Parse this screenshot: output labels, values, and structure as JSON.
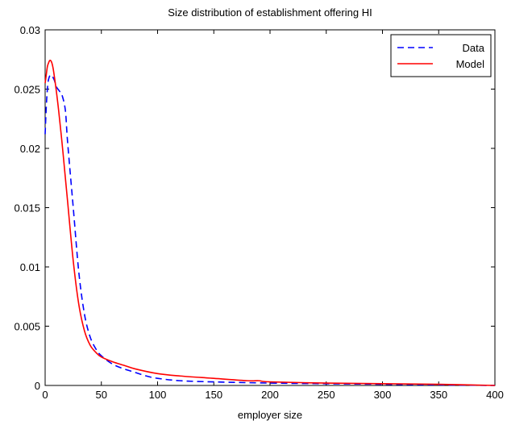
{
  "chart_data": {
    "type": "line",
    "title": "Size distribution of establishment offering HI",
    "xlabel": "employer size",
    "ylabel": "",
    "xlim": [
      0,
      400
    ],
    "ylim": [
      0,
      0.03
    ],
    "xticks": [
      0,
      50,
      100,
      150,
      200,
      250,
      300,
      350,
      400
    ],
    "xtick_labels": [
      "0",
      "50",
      "100",
      "150",
      "200",
      "250",
      "300",
      "350",
      "400"
    ],
    "yticks": [
      0,
      0.005,
      0.01,
      0.015,
      0.02,
      0.025,
      0.03
    ],
    "ytick_labels": [
      "0",
      "0.005",
      "0.01",
      "0.015",
      "0.02",
      "0.025",
      "0.03"
    ],
    "grid": false,
    "legend_position": "top-right",
    "series": [
      {
        "name": "Data",
        "color": "#0000ff",
        "style": "dashed",
        "x": [
          0,
          1,
          2,
          3,
          5,
          8,
          10,
          13,
          15,
          18,
          20,
          25,
          30,
          35,
          40,
          45,
          50,
          60,
          70,
          80,
          90,
          100,
          120,
          150,
          200,
          250,
          300,
          350,
          400
        ],
        "y": [
          0.0212,
          0.0235,
          0.025,
          0.0258,
          0.0262,
          0.0258,
          0.0252,
          0.0248,
          0.0245,
          0.0232,
          0.0205,
          0.015,
          0.0095,
          0.006,
          0.0041,
          0.0031,
          0.0025,
          0.0018,
          0.0014,
          0.0011,
          0.0008,
          0.0006,
          0.0004,
          0.0003,
          0.0002,
          0.00015,
          0.0001,
          5e-05,
          0.0
        ]
      },
      {
        "name": "Model",
        "color": "#ff0000",
        "style": "solid",
        "x": [
          0,
          1,
          2,
          3,
          4,
          5,
          6,
          7,
          8,
          10,
          12,
          15,
          18,
          20,
          25,
          30,
          35,
          40,
          45,
          50,
          60,
          70,
          80,
          100,
          120,
          150,
          180,
          190,
          200,
          250,
          300,
          350,
          400
        ],
        "y": [
          0.0255,
          0.0262,
          0.0269,
          0.0272,
          0.0274,
          0.0274,
          0.0272,
          0.0268,
          0.0262,
          0.0248,
          0.0232,
          0.0205,
          0.0175,
          0.0155,
          0.0105,
          0.0068,
          0.0046,
          0.0034,
          0.0028,
          0.0024,
          0.002,
          0.0017,
          0.0014,
          0.001,
          0.0008,
          0.0006,
          0.0004,
          0.0004,
          0.0003,
          0.0002,
          0.00015,
          0.0001,
          0.0
        ]
      }
    ]
  }
}
